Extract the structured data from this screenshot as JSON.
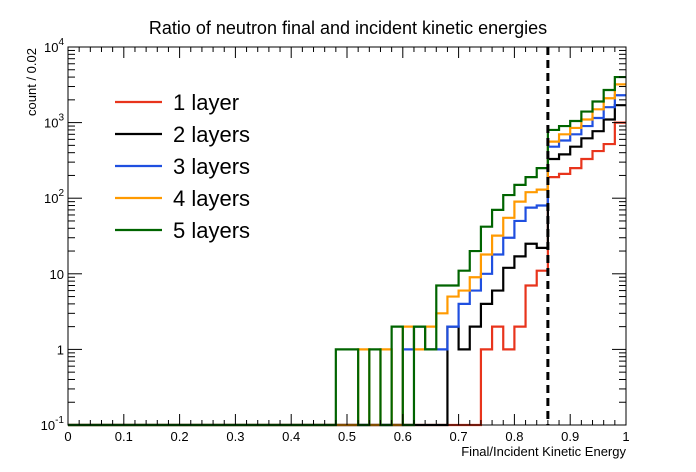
{
  "chart_data": {
    "type": "step-histogram",
    "title": "Ratio of neutron final and incident kinetic energies",
    "xlabel": "Final/Incident Kinetic Energy",
    "ylabel": "count / 0.02",
    "xlim": [
      0,
      1
    ],
    "ylim": [
      0.1,
      10000
    ],
    "yscale": "log",
    "bin_width": 0.02,
    "x_ticks": [
      "0",
      "0.1",
      "0.2",
      "0.3",
      "0.4",
      "0.5",
      "0.6",
      "0.7",
      "0.8",
      "0.9",
      "1"
    ],
    "x_tick_values": [
      0,
      0.1,
      0.2,
      0.3,
      0.4,
      0.5,
      0.6,
      0.7,
      0.8,
      0.9,
      1.0
    ],
    "y_ticks": [
      {
        "value": 0.1,
        "base": "10",
        "exp": "-1"
      },
      {
        "value": 1,
        "base": "1",
        "exp": ""
      },
      {
        "value": 10,
        "base": "10",
        "exp": ""
      },
      {
        "value": 100,
        "base": "10",
        "exp": "2"
      },
      {
        "value": 1000,
        "base": "10",
        "exp": "3"
      },
      {
        "value": 10000,
        "base": "10",
        "exp": "4"
      }
    ],
    "cut_line": {
      "x": 0.86,
      "style": "dashed",
      "color": "#000000"
    },
    "legend_position": "top-left",
    "grid": false,
    "series": [
      {
        "name": "1 layer",
        "color": "#e8341c",
        "bins": [
          {
            "x0": 0.74,
            "value": 1
          },
          {
            "x0": 0.76,
            "value": 2
          },
          {
            "x0": 0.78,
            "value": 1
          },
          {
            "x0": 0.8,
            "value": 2
          },
          {
            "x0": 0.82,
            "value": 7
          },
          {
            "x0": 0.84,
            "value": 11
          },
          {
            "x0": 0.86,
            "value": 190
          },
          {
            "x0": 0.88,
            "value": 210
          },
          {
            "x0": 0.9,
            "value": 250
          },
          {
            "x0": 0.92,
            "value": 330
          },
          {
            "x0": 0.94,
            "value": 420
          },
          {
            "x0": 0.96,
            "value": 520
          },
          {
            "x0": 0.98,
            "value": 1000
          }
        ]
      },
      {
        "name": "2 layers",
        "color": "#000000",
        "bins": [
          {
            "x0": 0.68,
            "value": 2
          },
          {
            "x0": 0.7,
            "value": 1
          },
          {
            "x0": 0.72,
            "value": 2
          },
          {
            "x0": 0.74,
            "value": 4
          },
          {
            "x0": 0.76,
            "value": 6
          },
          {
            "x0": 0.78,
            "value": 12
          },
          {
            "x0": 0.8,
            "value": 17
          },
          {
            "x0": 0.82,
            "value": 25
          },
          {
            "x0": 0.84,
            "value": 22
          },
          {
            "x0": 0.86,
            "value": 330
          },
          {
            "x0": 0.88,
            "value": 380
          },
          {
            "x0": 0.9,
            "value": 480
          },
          {
            "x0": 0.92,
            "value": 620
          },
          {
            "x0": 0.94,
            "value": 770
          },
          {
            "x0": 0.96,
            "value": 1100
          },
          {
            "x0": 0.98,
            "value": 1700
          }
        ]
      },
      {
        "name": "3 layers",
        "color": "#1f4fe0",
        "bins": [
          {
            "x0": 0.6,
            "value": 1
          },
          {
            "x0": 0.62,
            "value": 2
          },
          {
            "x0": 0.64,
            "value": 1
          },
          {
            "x0": 0.66,
            "value": 1
          },
          {
            "x0": 0.68,
            "value": 2
          },
          {
            "x0": 0.7,
            "value": 4
          },
          {
            "x0": 0.72,
            "value": 6
          },
          {
            "x0": 0.74,
            "value": 10
          },
          {
            "x0": 0.76,
            "value": 18
          },
          {
            "x0": 0.78,
            "value": 30
          },
          {
            "x0": 0.8,
            "value": 50
          },
          {
            "x0": 0.82,
            "value": 75
          },
          {
            "x0": 0.84,
            "value": 80
          },
          {
            "x0": 0.86,
            "value": 480
          },
          {
            "x0": 0.88,
            "value": 580
          },
          {
            "x0": 0.9,
            "value": 700
          },
          {
            "x0": 0.92,
            "value": 900
          },
          {
            "x0": 0.94,
            "value": 1150
          },
          {
            "x0": 0.96,
            "value": 1600
          },
          {
            "x0": 0.98,
            "value": 2300
          }
        ]
      },
      {
        "name": "4 layers",
        "color": "#ff9a00",
        "bins": [
          {
            "x0": 0.52,
            "value": 1
          },
          {
            "x0": 0.56,
            "value": 1
          },
          {
            "x0": 0.6,
            "value": 2
          },
          {
            "x0": 0.62,
            "value": 1
          },
          {
            "x0": 0.64,
            "value": 2
          },
          {
            "x0": 0.66,
            "value": 3
          },
          {
            "x0": 0.68,
            "value": 5
          },
          {
            "x0": 0.7,
            "value": 6
          },
          {
            "x0": 0.72,
            "value": 9
          },
          {
            "x0": 0.74,
            "value": 18
          },
          {
            "x0": 0.76,
            "value": 32
          },
          {
            "x0": 0.78,
            "value": 55
          },
          {
            "x0": 0.8,
            "value": 90
          },
          {
            "x0": 0.82,
            "value": 120
          },
          {
            "x0": 0.84,
            "value": 130
          },
          {
            "x0": 0.86,
            "value": 560
          },
          {
            "x0": 0.88,
            "value": 700
          },
          {
            "x0": 0.9,
            "value": 850
          },
          {
            "x0": 0.92,
            "value": 1100
          },
          {
            "x0": 0.94,
            "value": 1500
          },
          {
            "x0": 0.96,
            "value": 2100
          },
          {
            "x0": 0.98,
            "value": 3200
          }
        ]
      },
      {
        "name": "5 layers",
        "color": "#006400",
        "bins": [
          {
            "x0": 0.48,
            "value": 1
          },
          {
            "x0": 0.5,
            "value": 1
          },
          {
            "x0": 0.54,
            "value": 1
          },
          {
            "x0": 0.58,
            "value": 2
          },
          {
            "x0": 0.62,
            "value": 2
          },
          {
            "x0": 0.64,
            "value": 1
          },
          {
            "x0": 0.66,
            "value": 7
          },
          {
            "x0": 0.68,
            "value": 7
          },
          {
            "x0": 0.7,
            "value": 11
          },
          {
            "x0": 0.72,
            "value": 20
          },
          {
            "x0": 0.74,
            "value": 42
          },
          {
            "x0": 0.76,
            "value": 70
          },
          {
            "x0": 0.78,
            "value": 110
          },
          {
            "x0": 0.8,
            "value": 150
          },
          {
            "x0": 0.82,
            "value": 190
          },
          {
            "x0": 0.84,
            "value": 250
          },
          {
            "x0": 0.86,
            "value": 800
          },
          {
            "x0": 0.88,
            "value": 900
          },
          {
            "x0": 0.9,
            "value": 1050
          },
          {
            "x0": 0.92,
            "value": 1400
          },
          {
            "x0": 0.94,
            "value": 1900
          },
          {
            "x0": 0.96,
            "value": 2700
          },
          {
            "x0": 0.98,
            "value": 4000
          }
        ]
      }
    ]
  }
}
